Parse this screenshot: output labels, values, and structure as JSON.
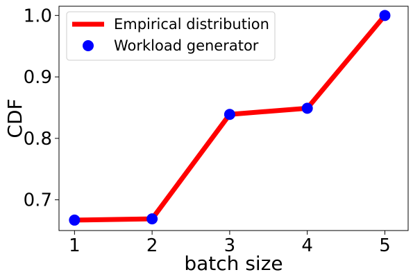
{
  "chart_data": {
    "type": "line",
    "xlabel": "batch size",
    "ylabel": "CDF",
    "xlim": [
      0.8,
      5.3
    ],
    "ylim": [
      0.65,
      1.015
    ],
    "xticks": [
      1,
      2,
      3,
      4,
      5
    ],
    "yticks": [
      0.7,
      0.8,
      0.9,
      1.0
    ],
    "ytick_labels": [
      "0.7",
      "0.8",
      "0.9",
      "1.0"
    ],
    "xtick_labels": [
      "1",
      "2",
      "3",
      "4",
      "5"
    ],
    "grid": false,
    "legend_position": "top-left",
    "series": [
      {
        "name": "Empirical distribution",
        "style": "line",
        "color": "#ff0000",
        "x": [
          1,
          2,
          3,
          4,
          5
        ],
        "y": [
          0.667,
          0.669,
          0.839,
          0.849,
          1.0
        ]
      },
      {
        "name": "Workload generator",
        "style": "markers",
        "color": "#0000ff",
        "x": [
          1,
          2,
          3,
          4,
          5
        ],
        "y": [
          0.667,
          0.669,
          0.839,
          0.849,
          1.0
        ]
      }
    ]
  }
}
